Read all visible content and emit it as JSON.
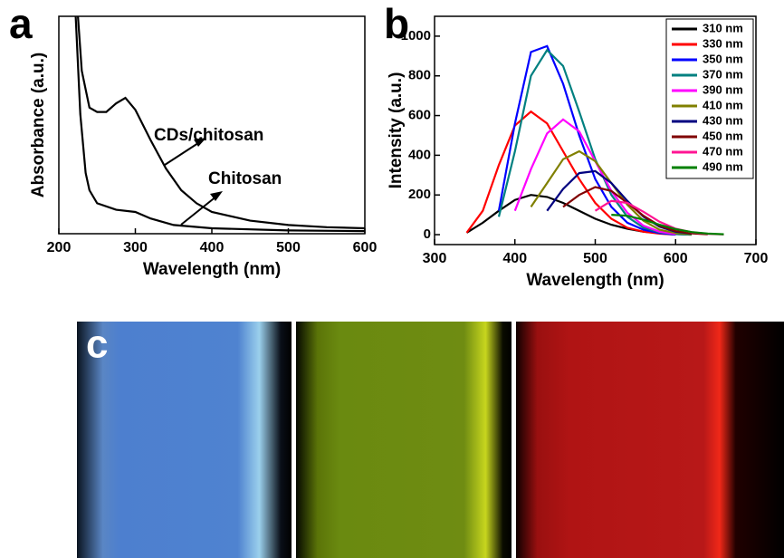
{
  "chart_data": [
    {
      "type": "line",
      "panel_label": "a",
      "x_label": "Wavelength (nm)",
      "y_label": "Absorbance (a.u.)",
      "xlim": [
        200,
        600
      ],
      "xticks": [
        200,
        300,
        400,
        500,
        600
      ],
      "ylim": [
        0,
        1
      ],
      "annotations": [
        "CDs/chitosan",
        "Chitosan"
      ],
      "series": [
        {
          "name": "CDs/chitosan",
          "color": "#000000",
          "x": [
            225,
            230,
            240,
            250,
            262,
            275,
            287,
            300,
            320,
            340,
            360,
            380,
            400,
            450,
            500,
            550,
            600
          ],
          "values": [
            1.0,
            0.75,
            0.58,
            0.56,
            0.56,
            0.6,
            0.625,
            0.57,
            0.43,
            0.3,
            0.2,
            0.14,
            0.1,
            0.06,
            0.04,
            0.03,
            0.025
          ]
        },
        {
          "name": "Chitosan",
          "color": "#000000",
          "x": [
            222,
            228,
            235,
            240,
            250,
            275,
            300,
            320,
            350,
            400,
            500,
            600
          ],
          "values": [
            1.0,
            0.55,
            0.28,
            0.2,
            0.14,
            0.11,
            0.1,
            0.07,
            0.04,
            0.025,
            0.015,
            0.012
          ]
        }
      ]
    },
    {
      "type": "line",
      "panel_label": "b",
      "x_label": "Wavelength (nm)",
      "y_label": "Intensity (a.u.)",
      "xlim": [
        300,
        700
      ],
      "xticks": [
        300,
        400,
        500,
        600,
        700
      ],
      "ylim": [
        -50,
        1100
      ],
      "yticks": [
        0,
        200,
        400,
        600,
        800,
        1000
      ],
      "legend": "upper right",
      "x": [
        340,
        360,
        380,
        400,
        420,
        440,
        460,
        480,
        500,
        520,
        540,
        560,
        580,
        600,
        620,
        640,
        660
      ],
      "series": [
        {
          "name": "310 nm",
          "color": "#000000",
          "values": [
            10,
            60,
            120,
            175,
            200,
            190,
            160,
            120,
            80,
            50,
            30,
            15,
            8,
            3,
            0,
            null,
            null
          ]
        },
        {
          "name": "330 nm",
          "color": "#ff0000",
          "values": [
            10,
            120,
            350,
            550,
            620,
            560,
            420,
            280,
            160,
            80,
            35,
            15,
            5,
            0,
            null,
            null,
            null
          ]
        },
        {
          "name": "350 nm",
          "color": "#0000ff",
          "values": [
            null,
            null,
            120,
            560,
            920,
            950,
            760,
            500,
            280,
            140,
            60,
            25,
            8,
            0,
            null,
            null,
            null
          ]
        },
        {
          "name": "370 nm",
          "color": "#008080",
          "values": [
            null,
            null,
            90,
            420,
            800,
            930,
            850,
            620,
            380,
            200,
            90,
            35,
            12,
            3,
            0,
            null,
            null
          ]
        },
        {
          "name": "390 nm",
          "color": "#ff00ff",
          "values": [
            null,
            null,
            null,
            120,
            330,
            510,
            580,
            520,
            370,
            220,
            110,
            45,
            15,
            3,
            null,
            null,
            null
          ]
        },
        {
          "name": "410 nm",
          "color": "#808000",
          "values": [
            null,
            null,
            null,
            null,
            140,
            260,
            380,
            420,
            370,
            260,
            150,
            70,
            25,
            8,
            2,
            null,
            null
          ]
        },
        {
          "name": "430 nm",
          "color": "#000080",
          "values": [
            null,
            null,
            null,
            null,
            null,
            120,
            230,
            310,
            320,
            260,
            170,
            90,
            40,
            15,
            5,
            null,
            null
          ]
        },
        {
          "name": "450 nm",
          "color": "#800000",
          "values": [
            null,
            null,
            null,
            null,
            null,
            null,
            140,
            200,
            240,
            220,
            160,
            95,
            45,
            18,
            6,
            2,
            null
          ]
        },
        {
          "name": "470 nm",
          "color": "#ff1493",
          "values": [
            null,
            null,
            null,
            null,
            null,
            null,
            null,
            null,
            120,
            170,
            160,
            115,
            65,
            30,
            12,
            4,
            1
          ]
        },
        {
          "name": "490 nm",
          "color": "#008000",
          "values": [
            null,
            null,
            null,
            null,
            null,
            null,
            null,
            null,
            null,
            100,
            95,
            75,
            50,
            28,
            13,
            5,
            2
          ]
        }
      ]
    }
  ],
  "photos": {
    "panel_label": "c"
  }
}
